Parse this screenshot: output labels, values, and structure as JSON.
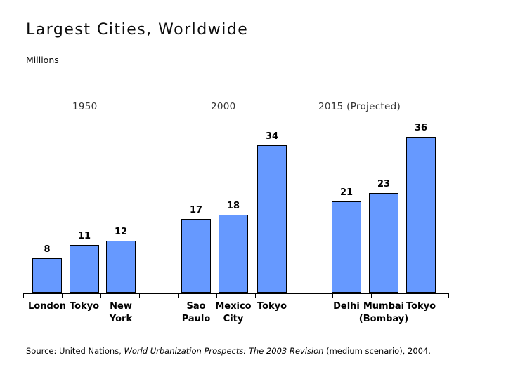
{
  "chart_data": {
    "type": "bar",
    "title": "Largest Cities, Worldwide",
    "units_label": "Millions",
    "ylabel": "Millions",
    "ylim": [
      0,
      38
    ],
    "grid": false,
    "legend": "none",
    "bar_fill_color": "#6699FF",
    "bar_border_color": "#000000",
    "categories": [
      "London",
      "Tokyo",
      "New York",
      "Sao Paulo",
      "Mexico City",
      "Tokyo",
      "Delhi",
      "Mumbai (Bombay)",
      "Tokyo"
    ],
    "values": [
      8,
      11,
      12,
      17,
      18,
      34,
      21,
      23,
      36
    ],
    "groups": [
      {
        "label": "1950",
        "bars": [
          {
            "city_lines": [
              "London"
            ],
            "value": 8
          },
          {
            "city_lines": [
              "Tokyo"
            ],
            "value": 11
          },
          {
            "city_lines": [
              "New",
              "York"
            ],
            "value": 12
          }
        ]
      },
      {
        "label": "2000",
        "bars": [
          {
            "city_lines": [
              "Sao",
              "Paulo"
            ],
            "value": 17
          },
          {
            "city_lines": [
              "Mexico",
              "City"
            ],
            "value": 18
          },
          {
            "city_lines": [
              "Tokyo"
            ],
            "value": 34
          }
        ]
      },
      {
        "label": "2015 (Projected)",
        "bars": [
          {
            "city_lines": [
              "Delhi"
            ],
            "value": 21
          },
          {
            "city_lines": [
              "Mumbai",
              "(Bombay)"
            ],
            "value": 23
          },
          {
            "city_lines": [
              "Tokyo"
            ],
            "value": 36
          }
        ]
      }
    ]
  },
  "source": {
    "prefix": "Source: United Nations, ",
    "italic": "World Urbanization Prospects: The 2003 Revision",
    "suffix": " (medium scenario), 2004."
  }
}
